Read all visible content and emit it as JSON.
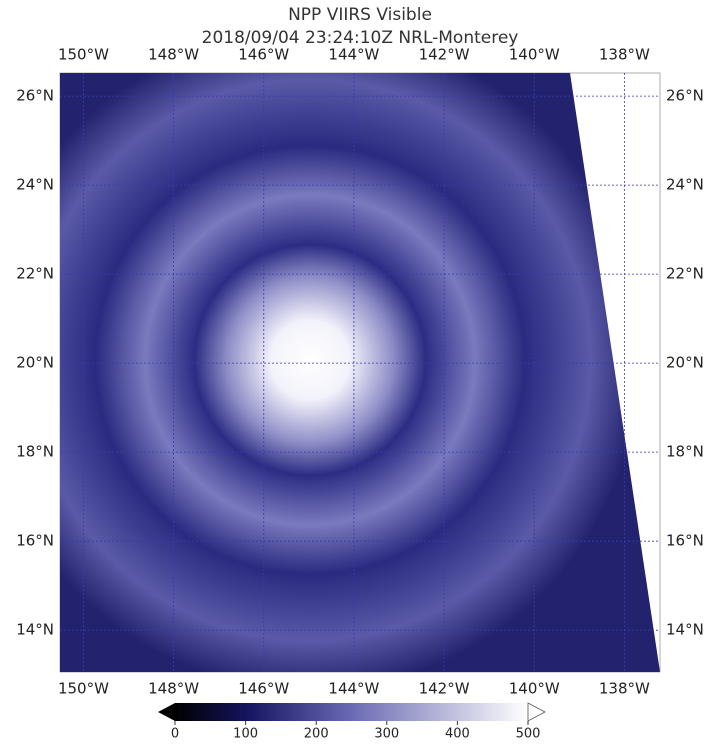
{
  "title": "NPP VIIRS Visible",
  "subtitle": "2018/09/04 23:24:10Z NRL-Monterey",
  "map": {
    "lonlim": [
      -150.52,
      -137.21
    ],
    "latlim": [
      13.06,
      26.52
    ],
    "lon_ticks": [
      {
        "value": -150,
        "label": "150°W"
      },
      {
        "value": -148,
        "label": "148°W"
      },
      {
        "value": -146,
        "label": "146°W"
      },
      {
        "value": -144,
        "label": "144°W"
      },
      {
        "value": -142,
        "label": "142°W"
      },
      {
        "value": -140,
        "label": "140°W"
      },
      {
        "value": -138,
        "label": "138°W"
      }
    ],
    "lat_ticks": [
      {
        "value": 26,
        "label": "26°N"
      },
      {
        "value": 24,
        "label": "24°N"
      },
      {
        "value": 22,
        "label": "22°N"
      },
      {
        "value": 20,
        "label": "20°N"
      },
      {
        "value": 18,
        "label": "18°N"
      },
      {
        "value": 16,
        "label": "16°N"
      },
      {
        "value": 14,
        "label": "14°N"
      }
    ]
  },
  "colorbar": {
    "clim": [
      0,
      500
    ],
    "ticks": [
      0,
      100,
      200,
      300,
      400,
      500
    ]
  }
}
